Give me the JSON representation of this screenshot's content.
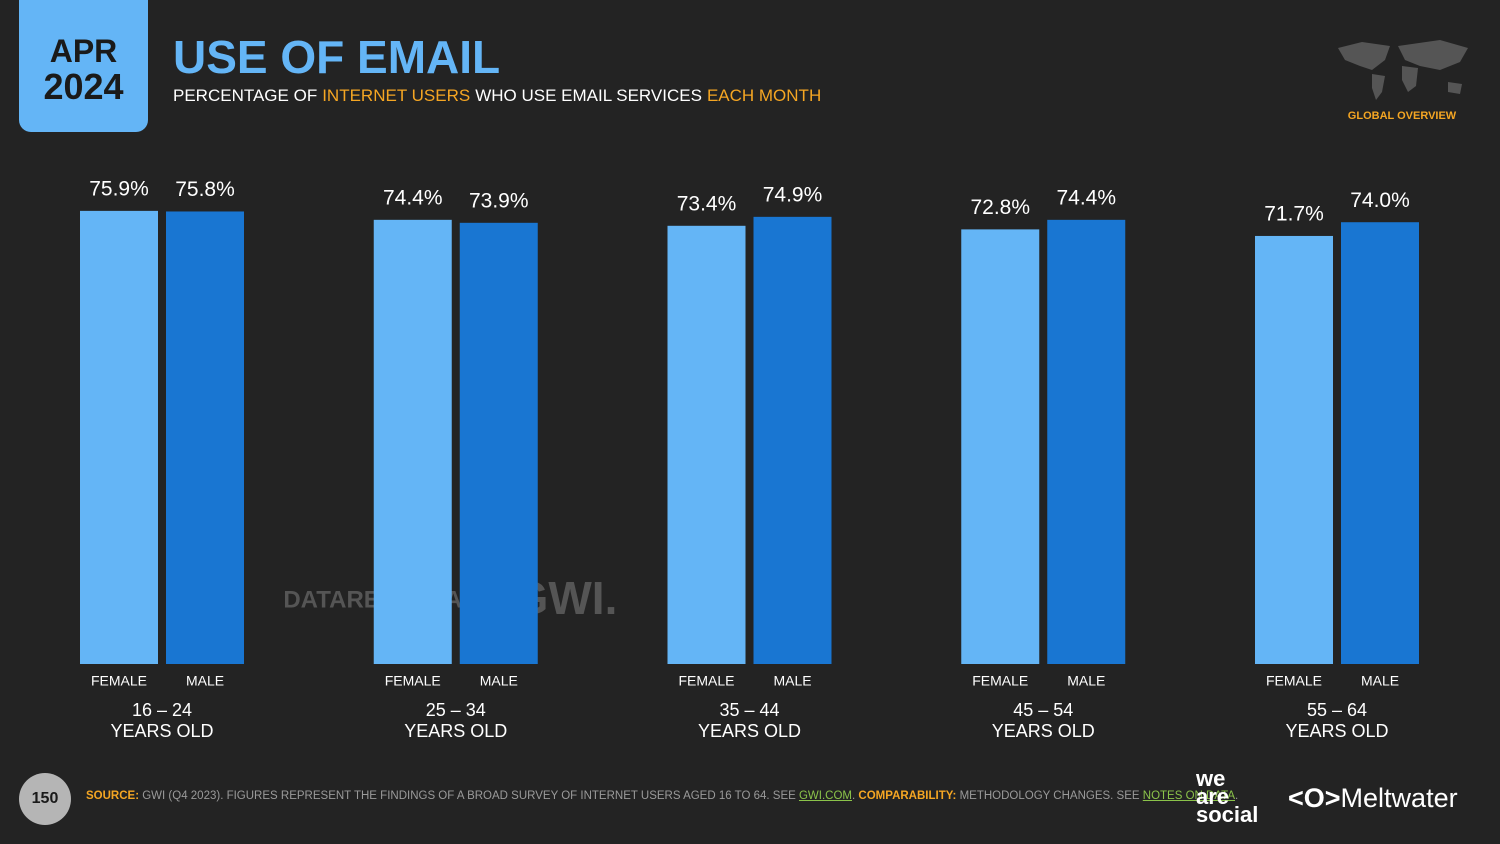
{
  "badge": {
    "month": "APR",
    "year": "2024"
  },
  "region": "GLOBAL OVERVIEW",
  "chart_data": {
    "type": "bar",
    "title": "USE OF EMAIL",
    "subtitle": [
      "PERCENTAGE OF",
      "INTERNET USERS",
      "WHO USE EMAIL SERVICES",
      "EACH MONTH"
    ],
    "categories": [
      "16 – 24",
      "25 – 34",
      "35 – 44",
      "45 – 54",
      "55 – 64"
    ],
    "category_sublabels": [
      "YEARS OLD",
      "YEARS OLD",
      "YEARS OLD",
      "YEARS OLD",
      "YEARS OLD"
    ],
    "series": [
      {
        "name": "FEMALE",
        "color": "#64b5f6",
        "values": [
          75.9,
          74.4,
          73.4,
          72.8,
          71.7
        ],
        "value_labels": [
          "75.9%",
          "74.4%",
          "73.4%",
          "72.8%",
          "71.7%"
        ]
      },
      {
        "name": "MALE",
        "color": "#1976d2",
        "values": [
          75.8,
          73.9,
          74.9,
          74.4,
          74.0
        ],
        "value_labels": [
          "75.8%",
          "73.9%",
          "74.9%",
          "74.4%",
          "74.0%"
        ]
      }
    ]
  },
  "watermarks": [
    "DATAREPORTAL",
    "GWI."
  ],
  "footer": {
    "page": "150",
    "source": [
      "SOURCE:",
      "GWI (Q4 2023). FIGURES REPRESENT THE FINDINGS OF A BROAD SURVEY OF INTERNET USERS AGED 16 TO 64. SEE",
      "GWI.COM",
      ".",
      "COMPARABILITY:",
      "METHODOLOGY CHANGES. SEE",
      "NOTES ON DATA",
      "."
    ],
    "logos": [
      "we",
      "are",
      "social",
      "Meltwater"
    ]
  }
}
